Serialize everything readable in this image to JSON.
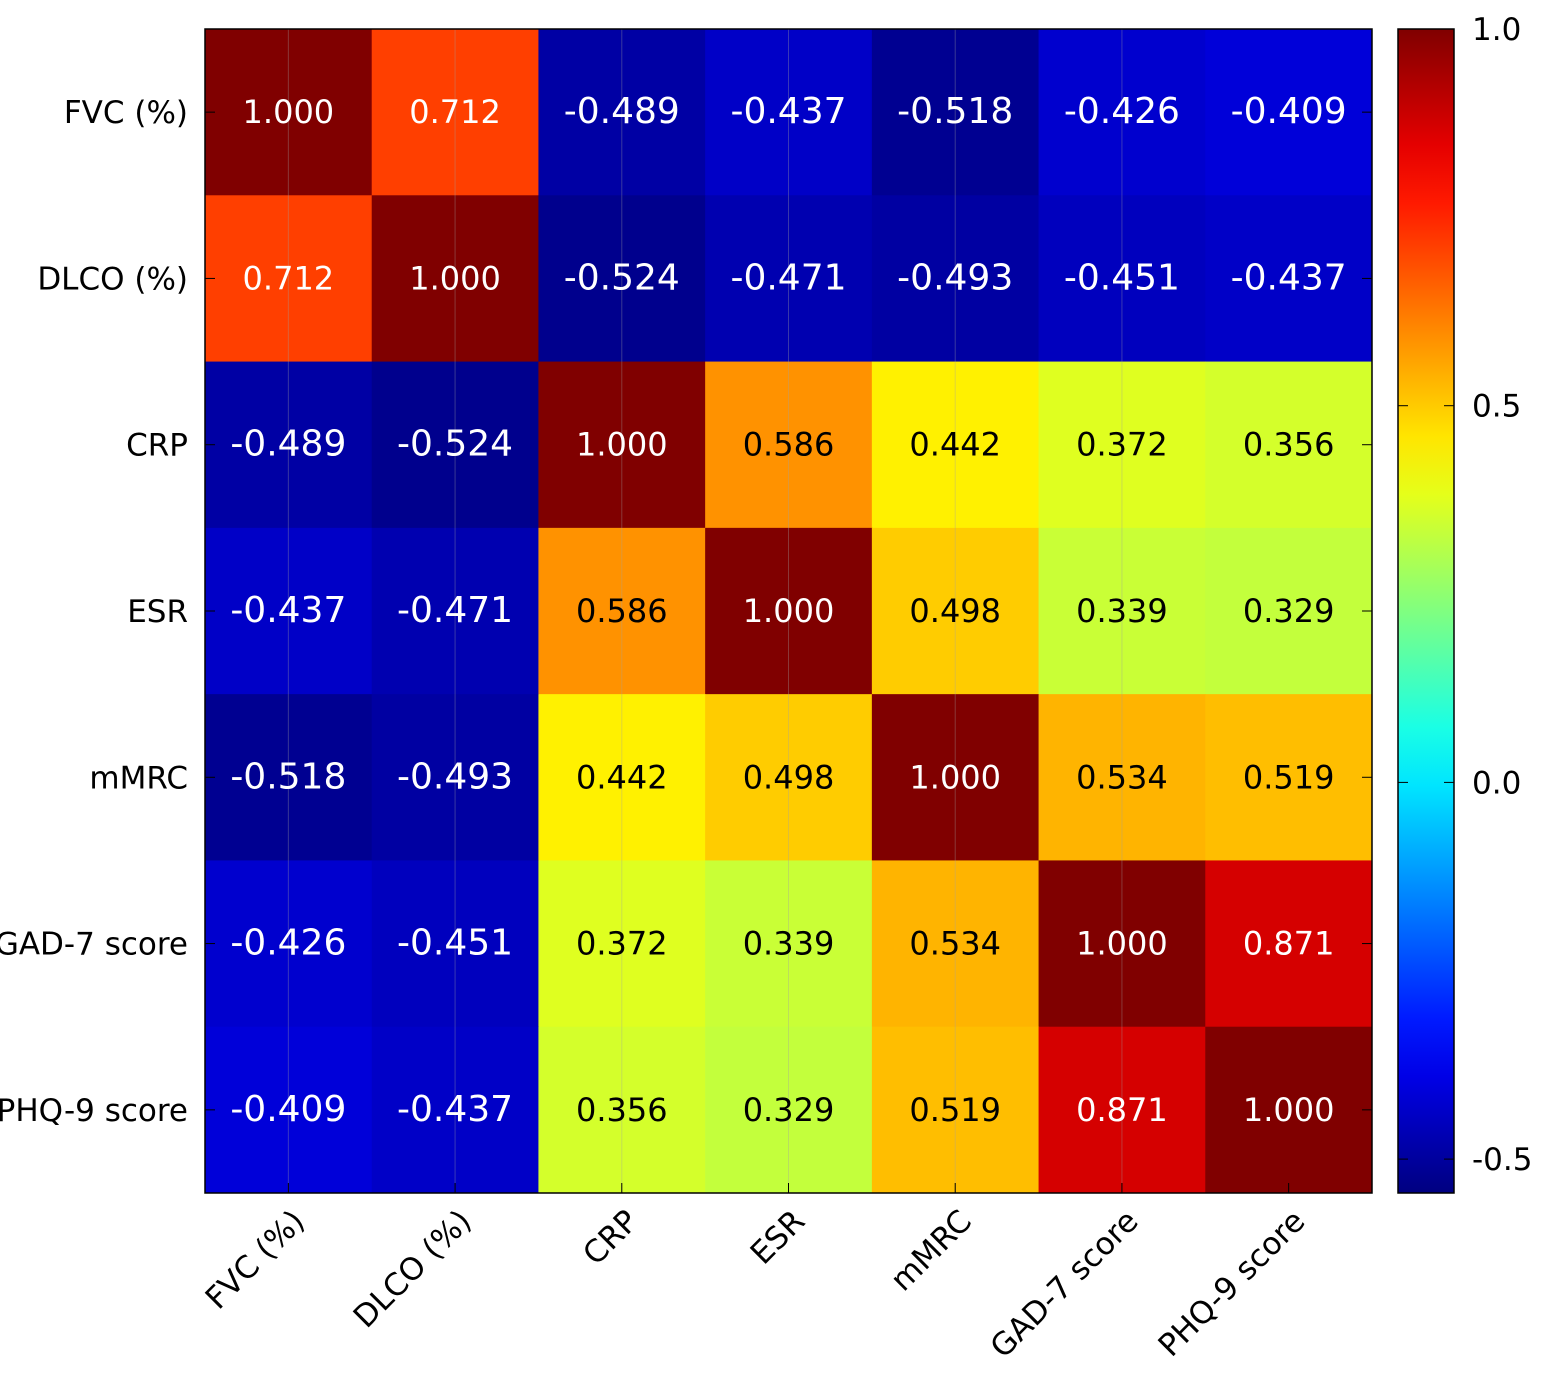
{
  "chart_data": {
    "type": "heatmap",
    "title": "",
    "xlabel": "",
    "ylabel": "",
    "labels": [
      "FVC (%)",
      "DLCO (%)",
      "CRP",
      "ESR",
      "mMRC",
      "GAD-7 score",
      "PHQ-9 score"
    ],
    "matrix": [
      [
        1.0,
        0.712,
        -0.489,
        -0.437,
        -0.518,
        -0.426,
        -0.409
      ],
      [
        0.712,
        1.0,
        -0.524,
        -0.471,
        -0.493,
        -0.451,
        -0.437
      ],
      [
        -0.489,
        -0.524,
        1.0,
        0.586,
        0.442,
        0.372,
        0.356
      ],
      [
        -0.437,
        -0.471,
        0.586,
        1.0,
        0.498,
        0.339,
        0.329
      ],
      [
        -0.518,
        -0.493,
        0.442,
        0.498,
        1.0,
        0.534,
        0.519
      ],
      [
        -0.426,
        -0.451,
        0.372,
        0.339,
        0.534,
        1.0,
        0.871
      ],
      [
        -0.409,
        -0.437,
        0.356,
        0.329,
        0.519,
        0.871,
        1.0
      ]
    ],
    "colorbar": {
      "colormap": "jet",
      "range": [
        -0.545,
        1.0
      ],
      "ticks": [
        1.0,
        0.5,
        0.0,
        -0.5
      ],
      "tick_labels": [
        "1.0",
        "0.5",
        "0.0",
        "-0.5"
      ]
    },
    "grid": true
  }
}
